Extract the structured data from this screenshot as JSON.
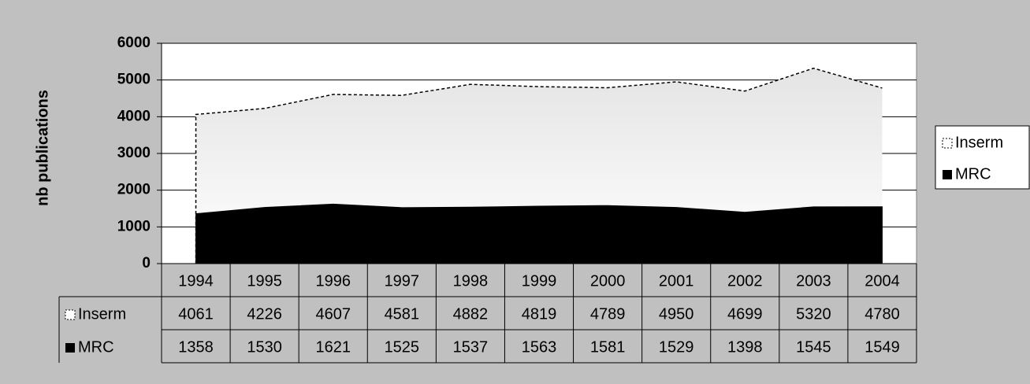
{
  "chart_data": {
    "type": "area",
    "y_label": "nb publications",
    "categories": [
      "1994",
      "1995",
      "1996",
      "1997",
      "1998",
      "1999",
      "2000",
      "2001",
      "2002",
      "2003",
      "2004"
    ],
    "series": [
      {
        "name": "Inserm",
        "color": "#e4e4e4",
        "values": [
          4061,
          4226,
          4607,
          4581,
          4882,
          4819,
          4789,
          4950,
          4699,
          5320,
          4780
        ]
      },
      {
        "name": "MRC",
        "color": "#000000",
        "values": [
          1358,
          1530,
          1621,
          1525,
          1537,
          1563,
          1581,
          1529,
          1398,
          1545,
          1549
        ]
      }
    ],
    "ylim": [
      0,
      6000
    ],
    "yticks": [
      0,
      1000,
      2000,
      3000,
      4000,
      5000,
      6000
    ],
    "grid": true,
    "legend": "right"
  }
}
